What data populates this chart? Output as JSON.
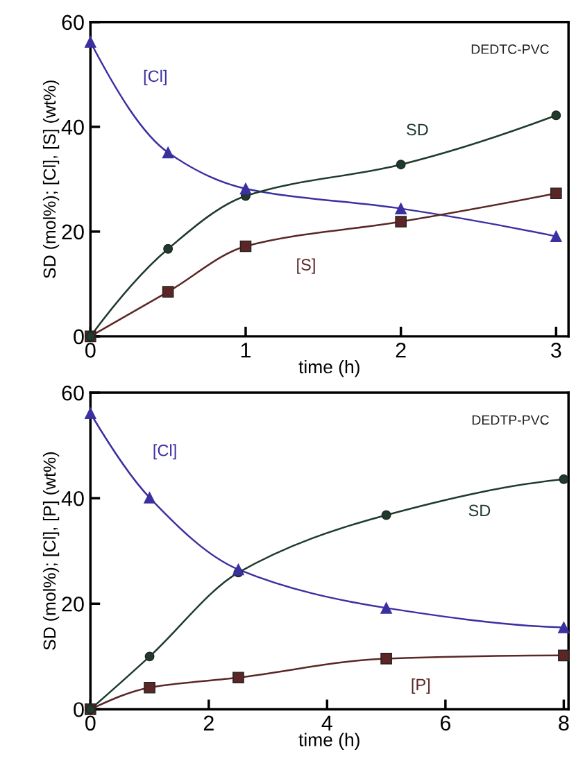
{
  "chart_data": [
    {
      "type": "line",
      "xlabel": "time (h)",
      "ylabel": "SD (mol%); [Cl], [S] (wt%)",
      "annotations": [
        "DEDTC-PVC"
      ],
      "xlim": [
        0,
        3.08
      ],
      "xticks": [
        0,
        1,
        2,
        3
      ],
      "ylim": [
        0,
        60
      ],
      "yticks": [
        0,
        20,
        40,
        60
      ],
      "grid": false,
      "legend": false,
      "series": [
        {
          "name": "[Cl]",
          "color": "#3b30a0",
          "marker": "triangle",
          "x": [
            0,
            0.5,
            1,
            2,
            3
          ],
          "values": [
            56.2,
            35.1,
            28.2,
            24.4,
            19.1
          ]
        },
        {
          "name": "SD",
          "color": "#1f3b2c",
          "marker": "circle",
          "x": [
            0,
            0.5,
            1,
            2,
            3
          ],
          "values": [
            0,
            16.7,
            26.8,
            32.8,
            42.2
          ]
        },
        {
          "name": "[S]",
          "color": "#5c2626",
          "marker": "square",
          "x": [
            0,
            0.5,
            1,
            2,
            3
          ],
          "values": [
            0,
            8.5,
            17.2,
            21.9,
            27.3
          ]
        }
      ]
    },
    {
      "type": "line",
      "xlabel": "time (h)",
      "ylabel": "SD (mol%); [Cl], [P] (wt%)",
      "annotations": [
        "DEDTP-PVC"
      ],
      "xlim": [
        0,
        8.08
      ],
      "xticks": [
        0,
        2,
        4,
        6,
        8
      ],
      "ylim": [
        0,
        60
      ],
      "yticks": [
        0,
        20,
        40,
        60
      ],
      "grid": false,
      "legend": false,
      "series": [
        {
          "name": "[Cl]",
          "color": "#3b30a0",
          "marker": "triangle",
          "x": [
            0,
            1,
            2.5,
            5,
            8
          ],
          "values": [
            56.1,
            40.1,
            26.5,
            19.2,
            15.5
          ]
        },
        {
          "name": "SD",
          "color": "#1f3b2c",
          "marker": "circle",
          "x": [
            0,
            1,
            2.5,
            5,
            8
          ],
          "values": [
            0,
            10.0,
            25.9,
            36.8,
            43.6
          ]
        },
        {
          "name": "[P]",
          "color": "#5c2626",
          "marker": "square",
          "x": [
            0,
            1,
            2.5,
            5,
            8
          ],
          "values": [
            0,
            4.1,
            6.0,
            9.6,
            10.2
          ]
        }
      ]
    }
  ]
}
